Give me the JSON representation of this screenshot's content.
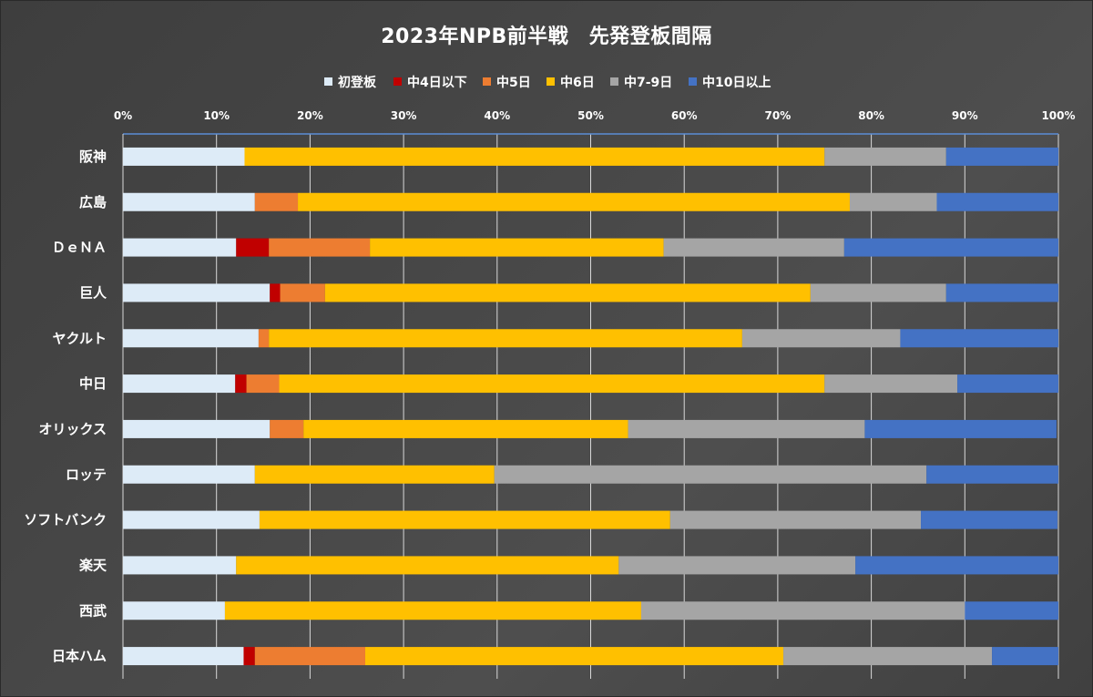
{
  "chart_data": {
    "type": "bar",
    "orientation": "horizontal",
    "stacked": "percent",
    "title": "2023年NPB前半戦　先発登板間隔",
    "xlabel": "",
    "ylabel": "",
    "xlim": [
      0,
      100
    ],
    "x_ticks": [
      "0%",
      "10%",
      "20%",
      "30%",
      "40%",
      "50%",
      "60%",
      "70%",
      "80%",
      "90%",
      "100%"
    ],
    "grid": true,
    "legend_position": "top",
    "categories": [
      "阪神",
      "広島",
      "ＤｅＮＡ",
      "巨人",
      "ヤクルト",
      "中日",
      "オリックス",
      "ロッテ",
      "ソフトバンク",
      "楽天",
      "西武",
      "日本ハム"
    ],
    "series": [
      {
        "name": "初登板",
        "color": "#DDEBF7",
        "values": [
          13.0,
          14.1,
          12.1,
          15.7,
          14.5,
          12.0,
          15.7,
          14.1,
          14.6,
          12.1,
          10.9,
          12.9
        ]
      },
      {
        "name": "中4日以下",
        "color": "#C00000",
        "values": [
          0,
          0,
          3.5,
          1.1,
          0,
          1.2,
          0,
          0,
          0,
          0,
          0,
          1.2
        ]
      },
      {
        "name": "中5日",
        "color": "#ED7D31",
        "values": [
          0,
          4.6,
          10.8,
          4.8,
          1.1,
          3.5,
          3.6,
          0,
          0,
          0,
          0,
          11.8
        ]
      },
      {
        "name": "中6日",
        "color": "#FFC000",
        "values": [
          62.0,
          59.0,
          31.4,
          51.9,
          50.6,
          58.3,
          34.7,
          25.6,
          43.9,
          40.9,
          44.5,
          44.7
        ]
      },
      {
        "name": "中7-9日",
        "color": "#A5A5A5",
        "values": [
          13.0,
          9.3,
          19.3,
          14.5,
          16.9,
          14.2,
          25.3,
          46.2,
          26.8,
          25.3,
          34.6,
          22.3
        ]
      },
      {
        "name": "中10日以上",
        "color": "#4472C4",
        "values": [
          12.0,
          13.0,
          22.9,
          12.0,
          16.9,
          10.8,
          20.5,
          14.1,
          14.6,
          21.7,
          10.0,
          7.1
        ]
      }
    ]
  }
}
